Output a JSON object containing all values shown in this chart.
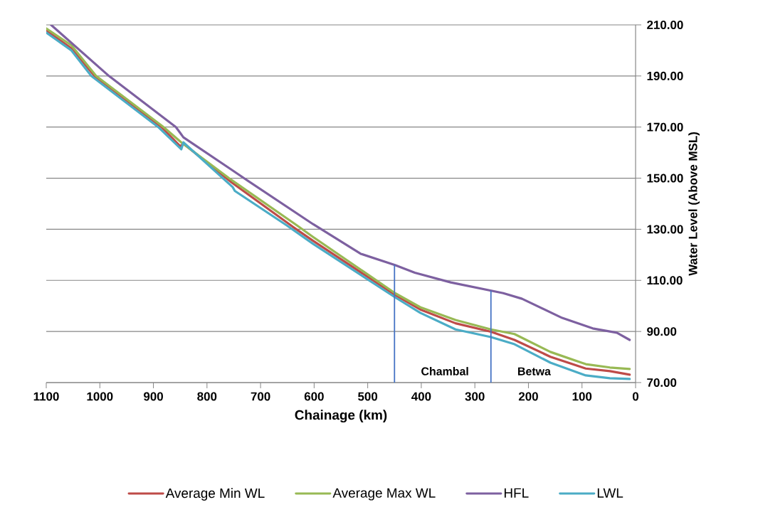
{
  "chart_data": {
    "type": "line",
    "xlabel": "Chainage (km)",
    "ylabel": "Water Level (Above MSL)",
    "xlim": [
      1100,
      0
    ],
    "xticks": [
      1100,
      1000,
      900,
      800,
      700,
      600,
      500,
      400,
      300,
      200,
      100,
      0
    ],
    "ylim": [
      70,
      210
    ],
    "yticks": [
      {
        "value": 70,
        "label": "70.00"
      },
      {
        "value": 90,
        "label": "90.00"
      },
      {
        "value": 110,
        "label": "110.00"
      },
      {
        "value": 130,
        "label": "130.00"
      },
      {
        "value": 150,
        "label": "150.00"
      },
      {
        "value": 170,
        "label": "170.00"
      },
      {
        "value": 190,
        "label": "190.00"
      },
      {
        "value": 210,
        "label": "210.00"
      }
    ],
    "grid": "y",
    "legend": "bottom",
    "line_style": "solid",
    "ref_lines": [
      {
        "axis": "x",
        "value": 450,
        "label": "Chambal",
        "color": "#4472c4"
      },
      {
        "axis": "x",
        "value": 270,
        "label": "Betwa",
        "color": "#4472c4"
      }
    ],
    "series": [
      {
        "name": "Average Min WL",
        "color": "#be4b48",
        "x": [
          1100,
          1053,
          1010,
          885,
          850,
          844,
          755,
          640,
          602,
          449,
          402,
          336,
          270,
          226,
          159,
          93,
          48,
          11
        ],
        "values": [
          207.8,
          200.8,
          190,
          170,
          162.5,
          163.5,
          148.5,
          131,
          125.5,
          104.3,
          98.6,
          93.2,
          89.9,
          86.7,
          80.1,
          75.5,
          74.5,
          73.1
        ]
      },
      {
        "name": "Average Max WL",
        "color": "#98b954",
        "x": [
          1100,
          1053,
          1007,
          881,
          848,
          759,
          632,
          602,
          449,
          402,
          336,
          270,
          226,
          159,
          93,
          48,
          11
        ],
        "values": [
          208.6,
          202,
          190,
          170,
          164,
          150,
          131.5,
          127,
          105,
          99.5,
          94.5,
          90.8,
          89,
          82,
          77.2,
          75.9,
          75.3
        ]
      },
      {
        "name": "HFL",
        "color": "#7d60a0",
        "x": [
          1091,
          983,
          858,
          844,
          752,
          731,
          602,
          513,
          449,
          412,
          345,
          247,
          212,
          137,
          80,
          35,
          11
        ],
        "values": [
          210,
          190,
          170,
          166,
          153,
          150,
          132,
          120.4,
          116,
          113,
          109.2,
          105,
          102.8,
          95.3,
          91.2,
          89.5,
          86.7
        ]
      },
      {
        "name": "LWL",
        "color": "#4bacc6",
        "x": [
          1100,
          1053,
          1016,
          891,
          848,
          844,
          752,
          748,
          651,
          602,
          449,
          402,
          336,
          270,
          226,
          159,
          93,
          48,
          11
        ],
        "values": [
          207,
          200,
          190,
          170,
          161.3,
          164,
          146.5,
          145,
          131.5,
          124.3,
          103.4,
          97.3,
          90.8,
          87.8,
          85,
          77.8,
          72.8,
          71.7,
          71.4
        ]
      }
    ]
  }
}
